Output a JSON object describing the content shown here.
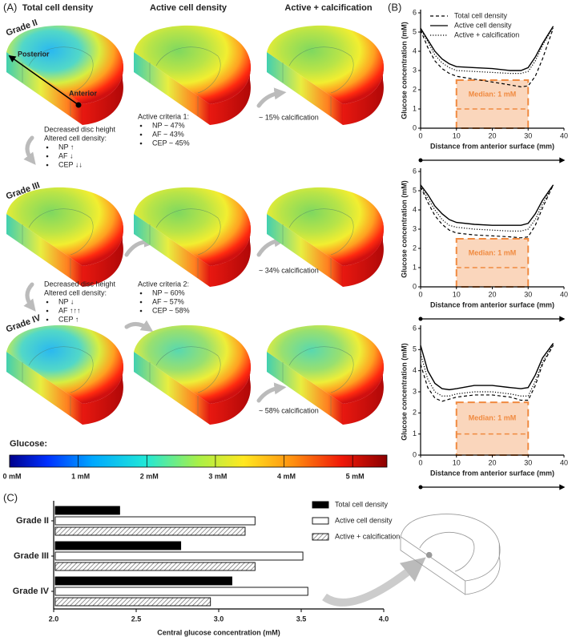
{
  "panel_a": {
    "label": "(A)",
    "column_titles": [
      "Total cell density",
      "Active cell density",
      "Active + calcification"
    ],
    "grades": [
      "Grade II",
      "Grade III",
      "Grade IV"
    ],
    "posterior": "Posterior",
    "anterior": "Anterior",
    "changes": [
      {
        "lines": [
          "Decreased disc height",
          "Altered cell density:"
        ],
        "bullets": [
          "NP ↑",
          "AF ↓",
          "CEP ↓↓"
        ]
      },
      {
        "lines": [
          "Decreased disc height",
          "Altered cell density:"
        ],
        "bullets": [
          "NP ↓",
          "AF ↑↑↑",
          "CEP ↑"
        ]
      }
    ],
    "criteria": [
      {
        "title": "Active criteria 1:",
        "bullets": [
          "NP ~ 47%",
          "AF ~  43%",
          "CEP ~ 45%"
        ]
      },
      {
        "title": "Active criteria 2:",
        "bullets": [
          "NP ~ 60%",
          "AF ~ 57%",
          "CEP ~ 58%"
        ]
      }
    ],
    "calcification": [
      "~ 15% calcification",
      "~ 34% calcification",
      "~ 58% calcification"
    ],
    "colorbar": {
      "title": "Glucose:",
      "range": [
        0,
        5.5
      ],
      "ticks": [
        {
          "value": 0,
          "label": "0 mM"
        },
        {
          "value": 1,
          "label": "1 mM"
        },
        {
          "value": 2,
          "label": "2 mM"
        },
        {
          "value": 3,
          "label": "3 mM"
        },
        {
          "value": 4,
          "label": "4 mM"
        },
        {
          "value": 5,
          "label": "5 mM"
        }
      ]
    }
  },
  "panel_b": {
    "label": "(B)"
  },
  "panel_c": {
    "label": "(C)"
  },
  "chart_data": [
    {
      "type": "line",
      "xlabel": "Distance from anterior surface (mm)",
      "ylabel": "Glucose concentration (mM)",
      "x": [
        0,
        2,
        4,
        6,
        8,
        10,
        15,
        20,
        25,
        28,
        30,
        32,
        34,
        37
      ],
      "series": [
        {
          "name": "Total cell density",
          "color": "#000000",
          "style": "dashed",
          "values": [
            5.1,
            4.2,
            3.5,
            3.1,
            2.85,
            2.7,
            2.55,
            2.4,
            2.25,
            2.15,
            2.2,
            2.7,
            3.6,
            5.2
          ]
        },
        {
          "name": "Active cell density",
          "color": "#000000",
          "style": "solid",
          "values": [
            5.2,
            4.6,
            4.0,
            3.6,
            3.35,
            3.2,
            3.15,
            3.1,
            3.0,
            3.0,
            3.15,
            3.7,
            4.4,
            5.3
          ]
        },
        {
          "name": "Active + calcification",
          "color": "#000000",
          "style": "dotted",
          "values": [
            5.15,
            4.5,
            3.8,
            3.4,
            3.15,
            3.0,
            2.95,
            2.9,
            2.85,
            2.85,
            2.95,
            3.5,
            4.3,
            5.25
          ]
        }
      ],
      "xlim": [
        0,
        40
      ],
      "ylim": [
        0,
        6
      ],
      "xticks": [
        0,
        10,
        20,
        30,
        40
      ],
      "yticks": [
        0,
        1,
        2,
        3,
        4,
        5,
        6
      ],
      "legend": "upper right",
      "shaded_region": {
        "xlim": [
          10,
          30
        ],
        "ylim": [
          0,
          2.5
        ],
        "color": "#f08a40"
      },
      "median_line": 1,
      "annotation": "Median: 1 mM"
    },
    {
      "type": "line",
      "xlabel": "Distance from anterior surface (mm)",
      "ylabel": "Glucose concentration (mM)",
      "x": [
        0,
        2,
        4,
        6,
        8,
        10,
        15,
        20,
        25,
        28,
        30,
        32,
        34,
        37
      ],
      "series": [
        {
          "color": "#000000",
          "style": "dashed",
          "values": [
            5.2,
            4.4,
            3.7,
            3.25,
            2.95,
            2.8,
            2.7,
            2.65,
            2.6,
            2.55,
            2.6,
            3.2,
            4.1,
            5.3
          ]
        },
        {
          "color": "#000000",
          "style": "solid",
          "values": [
            5.3,
            4.8,
            4.2,
            3.8,
            3.5,
            3.35,
            3.25,
            3.2,
            3.2,
            3.2,
            3.3,
            3.8,
            4.5,
            5.3
          ]
        },
        {
          "color": "#000000",
          "style": "dotted",
          "values": [
            5.25,
            4.6,
            4.0,
            3.5,
            3.2,
            3.1,
            3.0,
            2.95,
            2.9,
            2.9,
            3.0,
            3.5,
            4.3,
            5.3
          ]
        }
      ],
      "xlim": [
        0,
        40
      ],
      "ylim": [
        0,
        6
      ],
      "xticks": [
        0,
        10,
        20,
        30,
        40
      ],
      "yticks": [
        0,
        1,
        2,
        3,
        4,
        5,
        6
      ],
      "shaded_region": {
        "xlim": [
          10,
          30
        ],
        "ylim": [
          0,
          2.5
        ],
        "color": "#f08a40"
      },
      "median_line": 1,
      "annotation": "Median: 1 mM"
    },
    {
      "type": "line",
      "xlabel": "Distance from anterior surface (mm)",
      "ylabel": "Glucose concentration (mM)",
      "x": [
        0,
        2,
        4,
        6,
        8,
        10,
        15,
        20,
        25,
        28,
        30,
        32,
        34,
        37
      ],
      "series": [
        {
          "color": "#000000",
          "style": "dashed",
          "values": [
            4.3,
            3.2,
            2.7,
            2.55,
            2.65,
            2.75,
            2.85,
            2.85,
            2.75,
            2.6,
            2.6,
            3.3,
            4.3,
            5.2
          ]
        },
        {
          "color": "#000000",
          "style": "solid",
          "values": [
            5.2,
            4.0,
            3.4,
            3.15,
            3.1,
            3.15,
            3.3,
            3.3,
            3.2,
            3.15,
            3.2,
            3.8,
            4.6,
            5.3
          ]
        },
        {
          "color": "#000000",
          "style": "dotted",
          "values": [
            4.8,
            3.6,
            3.0,
            2.8,
            2.8,
            2.9,
            3.0,
            3.0,
            2.9,
            2.8,
            2.8,
            3.5,
            4.4,
            5.25
          ]
        }
      ],
      "xlim": [
        0,
        40
      ],
      "ylim": [
        0,
        6
      ],
      "xticks": [
        0,
        10,
        20,
        30,
        40
      ],
      "yticks": [
        0,
        1,
        2,
        3,
        4,
        5,
        6
      ],
      "shaded_region": {
        "xlim": [
          10,
          30
        ],
        "ylim": [
          0,
          2.5
        ],
        "color": "#f08a40"
      },
      "median_line": 1,
      "annotation": "Median: 1 mM"
    },
    {
      "type": "bar",
      "orientation": "horizontal",
      "xlabel": "Central glucose concentration (mM)",
      "categories": [
        "Grade II",
        "Grade III",
        "Grade IV"
      ],
      "series": [
        {
          "name": "Total cell density",
          "color": "#000000",
          "values": [
            2.4,
            2.77,
            3.08
          ]
        },
        {
          "name": "Active cell density",
          "color": "#ffffff",
          "values": [
            3.22,
            3.51,
            3.54
          ]
        },
        {
          "name": "Active + calcification",
          "color": "#777777",
          "hatch": true,
          "values": [
            3.16,
            3.22,
            2.95
          ]
        }
      ],
      "xlim": [
        2,
        4
      ],
      "xticks": [
        {
          "value": 2,
          "label": "2.0"
        },
        2.5,
        {
          "value": 3,
          "label": "3.0"
        },
        3.5,
        {
          "value": 4,
          "label": "4.0"
        }
      ],
      "legend": "upper right"
    }
  ]
}
